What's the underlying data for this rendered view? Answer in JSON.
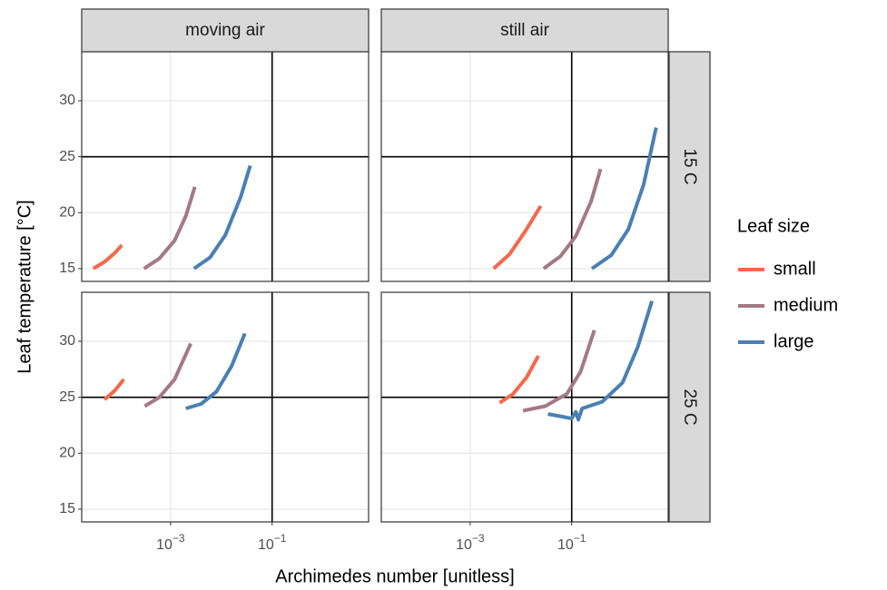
{
  "chart_data": {
    "type": "line",
    "x_label": "Archimedes number [unitless]",
    "y_label": "Leaf temperature [°C]",
    "legend_title": "Leaf size",
    "columns": [
      "moving air",
      "still air"
    ],
    "rows": [
      "15 C",
      "25 C"
    ],
    "xscale": "log",
    "xlim": [
      1.78e-05,
      7.94
    ],
    "xticks": [
      {
        "value": 0.001,
        "label": "10",
        "exponent": "−3"
      },
      {
        "value": 0.1,
        "label": "10",
        "exponent": "−1"
      }
    ],
    "ylim": [
      13.86,
      34.38
    ],
    "yticks": [
      15,
      20,
      25,
      30
    ],
    "grid": true,
    "vline": 0.1,
    "hline": 25,
    "series": [
      {
        "name": "small",
        "color": "#f4694c",
        "panels": [
          {
            "x": [
              3e-05,
              5e-05,
              8e-05,
              0.00011
            ],
            "values": [
              15,
              15.6,
              16.4,
              17.1
            ]
          },
          {
            "x": [
              0.0029,
              0.006,
              0.012,
              0.0245
            ],
            "values": [
              15,
              16.3,
              18.3,
              20.6
            ]
          },
          {
            "x": [
              5e-05,
              8e-05,
              0.00012
            ],
            "values": [
              24.8,
              25.6,
              26.6
            ]
          },
          {
            "x": [
              0.0038,
              0.007,
              0.013,
              0.022
            ],
            "values": [
              24.5,
              25.3,
              26.8,
              28.7
            ]
          }
        ]
      },
      {
        "name": "medium",
        "color": "#a37a84",
        "panels": [
          {
            "x": [
              0.0003,
              0.0006,
              0.0012,
              0.002,
              0.003
            ],
            "values": [
              15,
              15.9,
              17.5,
              19.7,
              22.3
            ]
          },
          {
            "x": [
              0.028,
              0.06,
              0.12,
              0.24,
              0.37
            ],
            "values": [
              15,
              16.1,
              17.9,
              21.0,
              23.9
            ]
          },
          {
            "x": [
              0.00031,
              0.0006,
              0.0012,
              0.0025
            ],
            "values": [
              24.2,
              25.0,
              26.6,
              29.8
            ]
          },
          {
            "x": [
              0.011,
              0.03,
              0.08,
              0.15,
              0.28
            ],
            "values": [
              23.8,
              24.2,
              25.3,
              27.3,
              31.0
            ]
          }
        ]
      },
      {
        "name": "large",
        "color": "#4a80b3",
        "panels": [
          {
            "x": [
              0.0029,
              0.006,
              0.012,
              0.024,
              0.037
            ],
            "values": [
              15,
              16.0,
              18.0,
              21.4,
              24.2
            ]
          },
          {
            "x": [
              0.25,
              0.6,
              1.3,
              2.6,
              4.6
            ],
            "values": [
              15,
              16.2,
              18.5,
              22.5,
              27.6
            ]
          },
          {
            "x": [
              0.002,
              0.004,
              0.008,
              0.016,
              0.029
            ],
            "values": [
              24.0,
              24.4,
              25.5,
              27.8,
              30.7
            ]
          },
          {
            "x": [
              0.034,
              0.06,
              0.1,
              0.12,
              0.135,
              0.16,
              0.4,
              1.0,
              2.0,
              3.8
            ],
            "values": [
              23.5,
              23.3,
              23.1,
              23.7,
              23.0,
              24.0,
              24.6,
              26.3,
              29.5,
              33.6
            ]
          }
        ]
      }
    ]
  }
}
